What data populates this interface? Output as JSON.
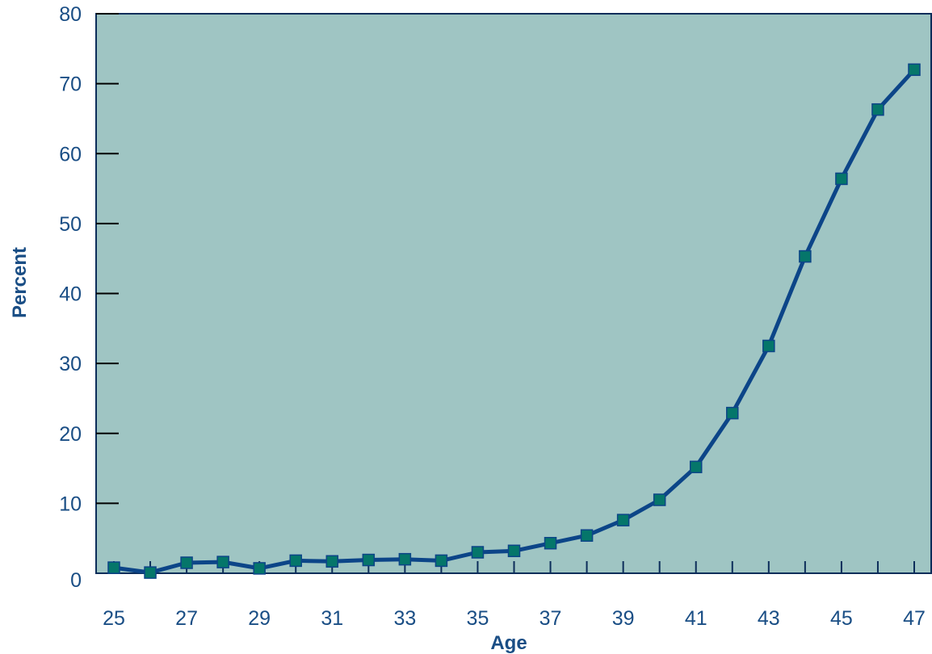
{
  "chart_data": {
    "type": "line",
    "title": "",
    "xlabel": "Age",
    "ylabel": "Percent",
    "xlim": [
      25,
      47
    ],
    "ylim": [
      0,
      80
    ],
    "x_ticks": [
      25,
      26,
      27,
      28,
      29,
      30,
      31,
      32,
      33,
      34,
      35,
      36,
      37,
      38,
      39,
      40,
      41,
      42,
      43,
      44,
      45,
      46,
      47
    ],
    "x_tick_labels": [
      "25",
      "27",
      "29",
      "31",
      "33",
      "35",
      "37",
      "39",
      "41",
      "43",
      "45",
      "47"
    ],
    "y_ticks": [
      0,
      10,
      20,
      30,
      40,
      50,
      60,
      70,
      80
    ],
    "y_tick_labels": [
      "0",
      "10",
      "20",
      "30",
      "40",
      "50",
      "60",
      "70",
      "80"
    ],
    "grid": false,
    "legend": "none",
    "series": [
      {
        "x": [
          25,
          26,
          27,
          28,
          29,
          30,
          31,
          32,
          33,
          34,
          35,
          36,
          37,
          38,
          39,
          40,
          41,
          42,
          43,
          44,
          45,
          46,
          47
        ],
        "values": [
          0.8,
          0.1,
          1.5,
          1.6,
          0.7,
          1.8,
          1.7,
          1.9,
          2.0,
          1.8,
          3.0,
          3.2,
          4.3,
          5.4,
          7.6,
          10.5,
          15.2,
          22.9,
          32.5,
          45.3,
          56.4,
          66.3,
          72.0
        ]
      }
    ],
    "colors": {
      "plot_background": "#9fc5c3",
      "line": "#0c4588",
      "marker_fill": "#05766a",
      "marker_stroke": "#0c4588",
      "text": "#1a4e85",
      "axis": "#0c2d5a"
    }
  }
}
